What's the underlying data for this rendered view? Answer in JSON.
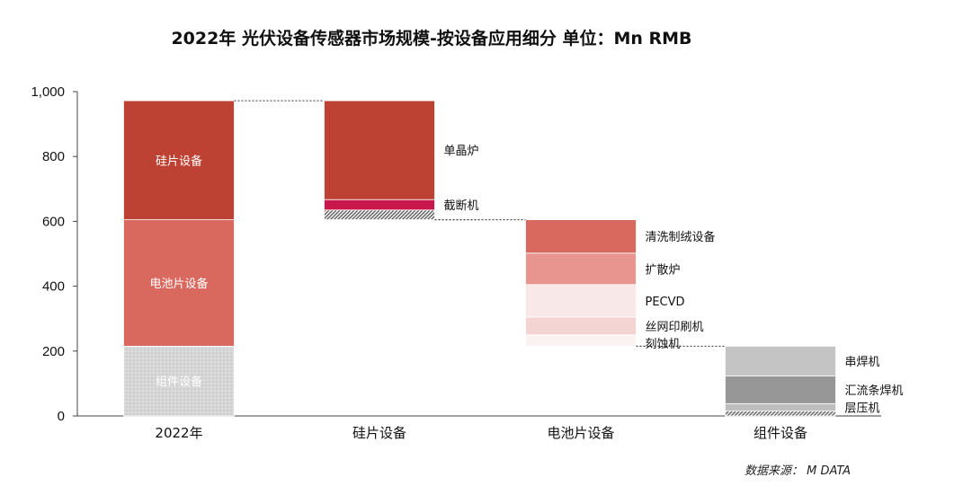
{
  "title": "2022年 光伏设备传感器市场规模-按设备应用细分 单位：Mn RMB",
  "source": "数据来源： M DATA",
  "chart_data": {
    "type": "bar",
    "subtype": "waterfall",
    "title": "2022年 光伏设备传感器市场规模-按设备应用细分 单位：Mn RMB",
    "ylim": [
      0,
      1000
    ],
    "yticks": [
      0,
      200,
      400,
      600,
      800,
      1000
    ],
    "ytick_labels": [
      "0",
      "200",
      "400",
      "600",
      "800",
      "1,000"
    ],
    "grid": false,
    "categories": [
      "2022年",
      "硅片设备",
      "电池片设备",
      "组件设备"
    ],
    "total": {
      "category": "2022年",
      "segments": [
        {
          "name": "组件设备",
          "start": 0,
          "end": 215,
          "color": "#cfcfcf",
          "pattern": "dots"
        },
        {
          "name": "电池片设备",
          "start": 215,
          "end": 605,
          "color": "#d9695f"
        },
        {
          "name": "硅片设备",
          "start": 605,
          "end": 972,
          "color": "#be4234"
        }
      ]
    },
    "breakdowns": [
      {
        "category": "硅片设备",
        "segments": [
          {
            "name": "",
            "start": 605,
            "end": 635,
            "color": "#555555",
            "pattern": "hatch"
          },
          {
            "name": "截断机",
            "start": 635,
            "end": 667,
            "color": "#c8174a"
          },
          {
            "name": "单晶炉",
            "start": 667,
            "end": 972,
            "color": "#be4234"
          }
        ]
      },
      {
        "category": "电池片设备",
        "segments": [
          {
            "name": "刻蚀机",
            "start": 215,
            "end": 250,
            "color": "#fbf3f2"
          },
          {
            "name": "丝网印刷机",
            "start": 250,
            "end": 305,
            "color": "#f4d4d2"
          },
          {
            "name": "PECVD",
            "start": 305,
            "end": 405,
            "color": "#f8e8e7"
          },
          {
            "name": "扩散炉",
            "start": 405,
            "end": 502,
            "color": "#e9958f"
          },
          {
            "name": "清洗制绒设备",
            "start": 502,
            "end": 605,
            "color": "#d9695f"
          }
        ]
      },
      {
        "category": "组件设备",
        "segments": [
          {
            "name": "",
            "start": 0,
            "end": 15,
            "color": "#555555",
            "pattern": "hatch"
          },
          {
            "name": "层压机",
            "start": 15,
            "end": 38,
            "color": "#bdbdbd"
          },
          {
            "name": "汇流条焊机",
            "start": 38,
            "end": 123,
            "color": "#979797"
          },
          {
            "name": "串焊机",
            "start": 123,
            "end": 215,
            "color": "#c4c4c4"
          }
        ]
      }
    ]
  }
}
